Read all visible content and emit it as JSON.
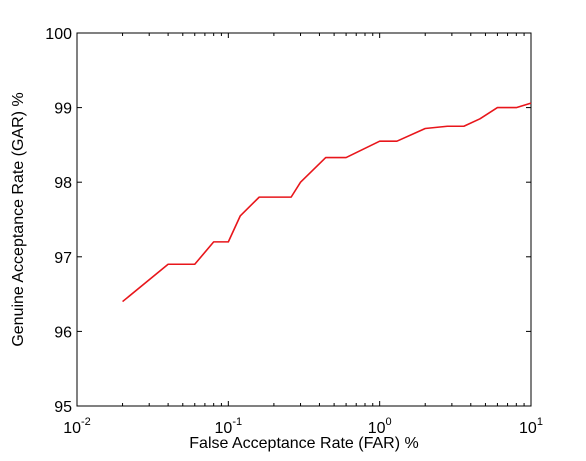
{
  "chart_data": {
    "type": "line",
    "title": "",
    "xlabel": "False Acceptance Rate (FAR) %",
    "ylabel": "Genuine Acceptance Rate (GAR) %",
    "x_scale": "log",
    "xlim": [
      0.01,
      10
    ],
    "ylim": [
      95,
      100
    ],
    "grid": false,
    "x_ticks": [
      {
        "value": 0.01,
        "base": "10",
        "exp": "-2"
      },
      {
        "value": 0.1,
        "base": "10",
        "exp": "-1"
      },
      {
        "value": 1,
        "base": "10",
        "exp": "0"
      },
      {
        "value": 10,
        "base": "10",
        "exp": "1"
      }
    ],
    "y_ticks": [
      {
        "value": 95,
        "label": "95"
      },
      {
        "value": 96,
        "label": "96"
      },
      {
        "value": 97,
        "label": "97"
      },
      {
        "value": 98,
        "label": "98"
      },
      {
        "value": 99,
        "label": "99"
      },
      {
        "value": 100,
        "label": "100"
      }
    ],
    "series": [
      {
        "color": "#e8161b",
        "x": [
          0.02,
          0.04,
          0.06,
          0.08,
          0.1,
          0.12,
          0.16,
          0.26,
          0.3,
          0.44,
          0.6,
          1.0,
          1.3,
          2.0,
          2.8,
          3.6,
          4.6,
          6.0,
          8.0,
          10.0
        ],
        "y": [
          96.4,
          96.9,
          96.9,
          97.2,
          97.2,
          97.55,
          97.8,
          97.8,
          98.0,
          98.33,
          98.33,
          98.55,
          98.55,
          98.72,
          98.75,
          98.75,
          98.85,
          99.0,
          99.0,
          99.06
        ]
      }
    ]
  }
}
